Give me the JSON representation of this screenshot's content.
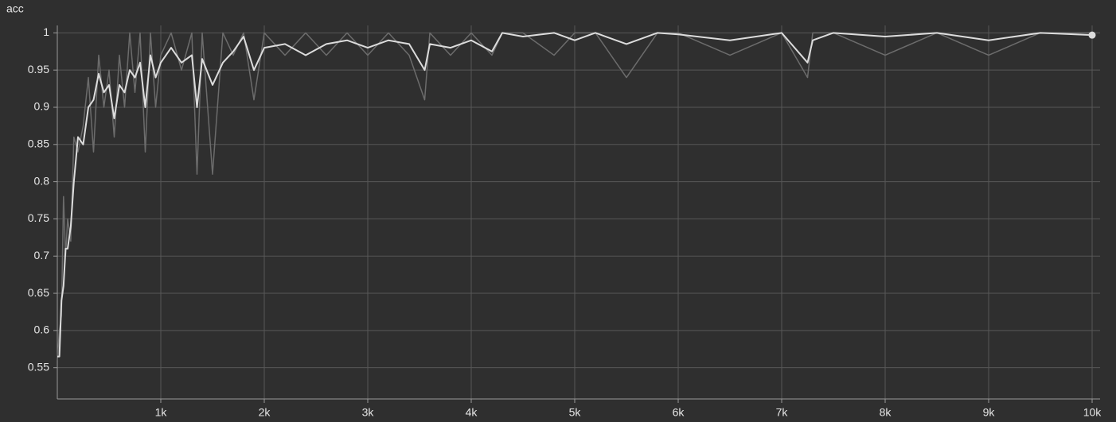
{
  "chart_data": {
    "type": "line",
    "title": "acc",
    "x": [
      0,
      20,
      40,
      60,
      80,
      100,
      130,
      160,
      200,
      250,
      300,
      350,
      400,
      450,
      500,
      550,
      600,
      650,
      700,
      750,
      800,
      850,
      900,
      950,
      1000,
      1100,
      1200,
      1300,
      1350,
      1400,
      1500,
      1600,
      1700,
      1800,
      1900,
      2000,
      2200,
      2400,
      2600,
      2800,
      3000,
      3200,
      3400,
      3550,
      3600,
      3800,
      4000,
      4200,
      4300,
      4500,
      4800,
      5000,
      5200,
      5500,
      5800,
      6000,
      6500,
      7000,
      7250,
      7300,
      7500,
      8000,
      8500,
      9000,
      9500,
      10000
    ],
    "series": [
      {
        "color": "#6c6c6c",
        "values": [
          0.56,
          0.6,
          0.62,
          0.78,
          0.7,
          0.75,
          0.72,
          0.86,
          0.84,
          0.875,
          0.94,
          0.84,
          0.97,
          0.9,
          0.95,
          0.86,
          0.97,
          0.9,
          1,
          0.92,
          1,
          0.84,
          1,
          0.9,
          0.97,
          1,
          0.95,
          1,
          0.81,
          1,
          0.81,
          1,
          0.97,
          1,
          0.91,
          1,
          0.97,
          1,
          0.97,
          1,
          0.97,
          1,
          0.97,
          0.91,
          1,
          0.97,
          1,
          0.97,
          1,
          1,
          0.97,
          1,
          1,
          0.94,
          1,
          1,
          0.97,
          1,
          0.94,
          1,
          1,
          0.97,
          1,
          0.97,
          1,
          1
        ]
      },
      {
        "color": "#dcdcdc",
        "values": [
          0.565,
          0.565,
          0.64,
          0.66,
          0.71,
          0.71,
          0.74,
          0.8,
          0.86,
          0.85,
          0.9,
          0.91,
          0.945,
          0.92,
          0.93,
          0.885,
          0.93,
          0.92,
          0.95,
          0.94,
          0.96,
          0.9,
          0.97,
          0.94,
          0.96,
          0.98,
          0.96,
          0.97,
          0.9,
          0.965,
          0.93,
          0.96,
          0.975,
          0.995,
          0.95,
          0.98,
          0.985,
          0.97,
          0.985,
          0.99,
          0.98,
          0.99,
          0.985,
          0.95,
          0.985,
          0.98,
          0.99,
          0.975,
          1,
          0.995,
          1,
          0.99,
          1,
          0.985,
          1,
          0.998,
          0.99,
          1,
          0.96,
          0.99,
          1,
          0.995,
          1,
          0.99,
          1,
          0.997
        ]
      }
    ],
    "xlim": [
      0,
      10000
    ],
    "xticks": [
      {
        "value": 1000,
        "label": "1k"
      },
      {
        "value": 2000,
        "label": "2k"
      },
      {
        "value": 3000,
        "label": "3k"
      },
      {
        "value": 4000,
        "label": "4k"
      },
      {
        "value": 5000,
        "label": "5k"
      },
      {
        "value": 6000,
        "label": "6k"
      },
      {
        "value": 7000,
        "label": "7k"
      },
      {
        "value": 8000,
        "label": "8k"
      },
      {
        "value": 9000,
        "label": "9k"
      },
      {
        "value": 10000,
        "label": "10k"
      }
    ],
    "ylim": [
      0.508,
      1.01
    ],
    "yticks": [
      0.55,
      0.6,
      0.65,
      0.7,
      0.75,
      0.8,
      0.85,
      0.9,
      0.95,
      1
    ],
    "grid": true
  }
}
